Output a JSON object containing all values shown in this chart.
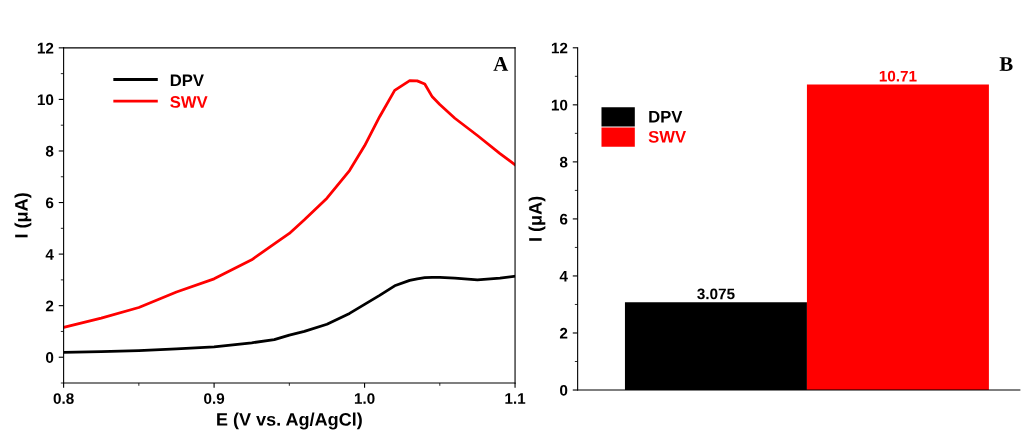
{
  "chart_data": [
    {
      "type": "line",
      "title": "A",
      "xlabel": "E (V vs. Ag/AgCl)",
      "ylabel": "I (μA)",
      "xlim": [
        0.8,
        1.1
      ],
      "xticks": [
        {
          "value": 0.8,
          "label": "0.8"
        },
        {
          "value": 0.9,
          "label": "0.9"
        },
        {
          "value": 1.0,
          "label": "1.0"
        },
        {
          "value": 1.1,
          "label": "1.1"
        }
      ],
      "ylim": [
        -1,
        12
      ],
      "yticks": [
        0,
        2,
        4,
        6,
        8,
        10,
        12
      ],
      "legend": "top left",
      "grid": false,
      "x": [
        0.8,
        0.825,
        0.85,
        0.875,
        0.9,
        0.925,
        0.94,
        0.95,
        0.96,
        0.975,
        0.99,
        1.0,
        1.01,
        1.02,
        1.03,
        1.035,
        1.04,
        1.045,
        1.05,
        1.06,
        1.075,
        1.09,
        1.1
      ],
      "series": [
        {
          "name": "DPV",
          "color": "#000000",
          "values": [
            0.19,
            0.22,
            0.26,
            0.32,
            0.4,
            0.56,
            0.68,
            0.86,
            1.0,
            1.28,
            1.7,
            2.05,
            2.4,
            2.77,
            2.98,
            3.04,
            3.09,
            3.1,
            3.1,
            3.07,
            3.0,
            3.07,
            3.14
          ]
        },
        {
          "name": "SWV",
          "color": "#ff0000",
          "values": [
            1.16,
            1.52,
            1.93,
            2.53,
            3.04,
            3.78,
            4.4,
            4.8,
            5.33,
            6.17,
            7.24,
            8.2,
            9.33,
            10.35,
            10.73,
            10.72,
            10.6,
            10.1,
            9.8,
            9.27,
            8.6,
            7.9,
            7.46
          ]
        }
      ]
    },
    {
      "type": "bar",
      "title": "B",
      "ylabel": "I (μA)",
      "categories": [
        null,
        null
      ],
      "stacked": true,
      "ylim": [
        0,
        12
      ],
      "yticks": [
        0,
        2,
        4,
        6,
        8,
        10,
        12
      ],
      "legend": "top left",
      "grid": false,
      "series": [
        {
          "name": "DPV",
          "color": "#000000",
          "values": [
            3.075,
            null
          ],
          "value_labels": [
            "3.075",
            null
          ]
        },
        {
          "name": "SWV",
          "color": "#ff0000",
          "values": [
            null,
            10.71
          ],
          "value_labels": [
            null,
            "10.71"
          ]
        }
      ]
    }
  ]
}
